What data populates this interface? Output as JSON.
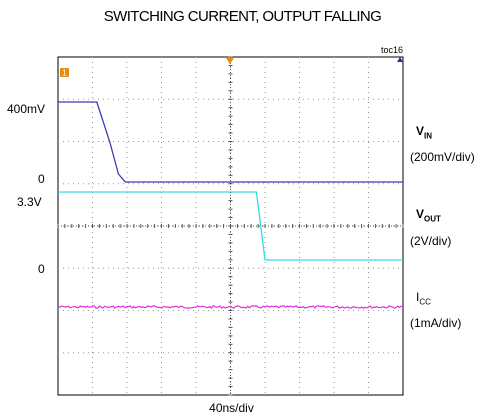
{
  "chart_data": {
    "type": "line",
    "title": "SWITCHING CURRENT, OUTPUT FALLING",
    "figure_id": "toc16",
    "time_scale": "40ns/div",
    "colors": {
      "vin": "#3a3fb0",
      "vout": "#33dde6",
      "icc": "#dd33dd",
      "marker": "#e88a10"
    },
    "series": [
      {
        "name_main": "V",
        "name_sub": "IN",
        "scale": "(200mV/div)",
        "level_labels": [
          "400mV",
          "0"
        ],
        "unit": "mV",
        "x": [
          0,
          45,
          60,
          70,
          78,
          90,
          400
        ],
        "values": [
          400,
          400,
          200,
          40,
          0,
          0,
          0
        ]
      },
      {
        "name_main": "V",
        "name_sub": "OUT",
        "scale": "(2V/div)",
        "level_labels": [
          "3.3V",
          "0"
        ],
        "unit": "V",
        "x": [
          0,
          230,
          234,
          240,
          400
        ],
        "values": [
          3.3,
          3.3,
          2.0,
          0,
          0
        ]
      },
      {
        "name_main": "I",
        "name_sub": "CC",
        "scale": "(1mA/div)",
        "x": [
          0,
          400
        ],
        "values": [
          0,
          0
        ]
      }
    ]
  }
}
